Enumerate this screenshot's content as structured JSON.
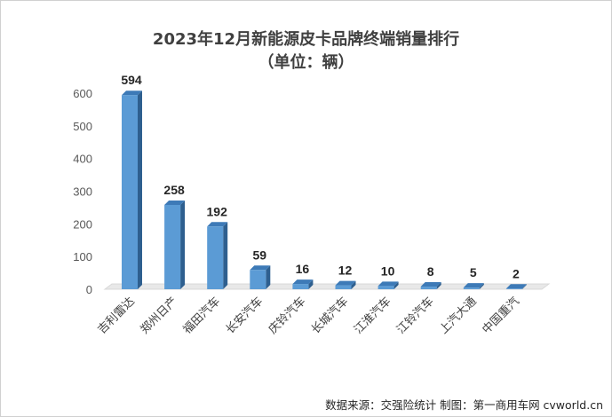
{
  "chart_data": {
    "type": "bar",
    "title": "2023年12月新能源皮卡品牌终端销量排行",
    "subtitle": "（单位：辆）",
    "categories": [
      "吉利雷达",
      "郑州日产",
      "福田汽车",
      "长安汽车",
      "庆铃汽车",
      "长城汽车",
      "江淮汽车",
      "江铃汽车",
      "上汽大通",
      "中国重汽"
    ],
    "values": [
      594,
      258,
      192,
      59,
      16,
      12,
      10,
      8,
      5,
      2
    ],
    "ylim": [
      0,
      600
    ],
    "yticks": [
      "0",
      "100",
      "200",
      "300",
      "400",
      "500",
      "600"
    ],
    "grid": false,
    "bar_color": "#5b9bd5"
  },
  "footer": {
    "source": "数据来源：交强险统计  制图：第一商用车网 cvworld.cn"
  }
}
